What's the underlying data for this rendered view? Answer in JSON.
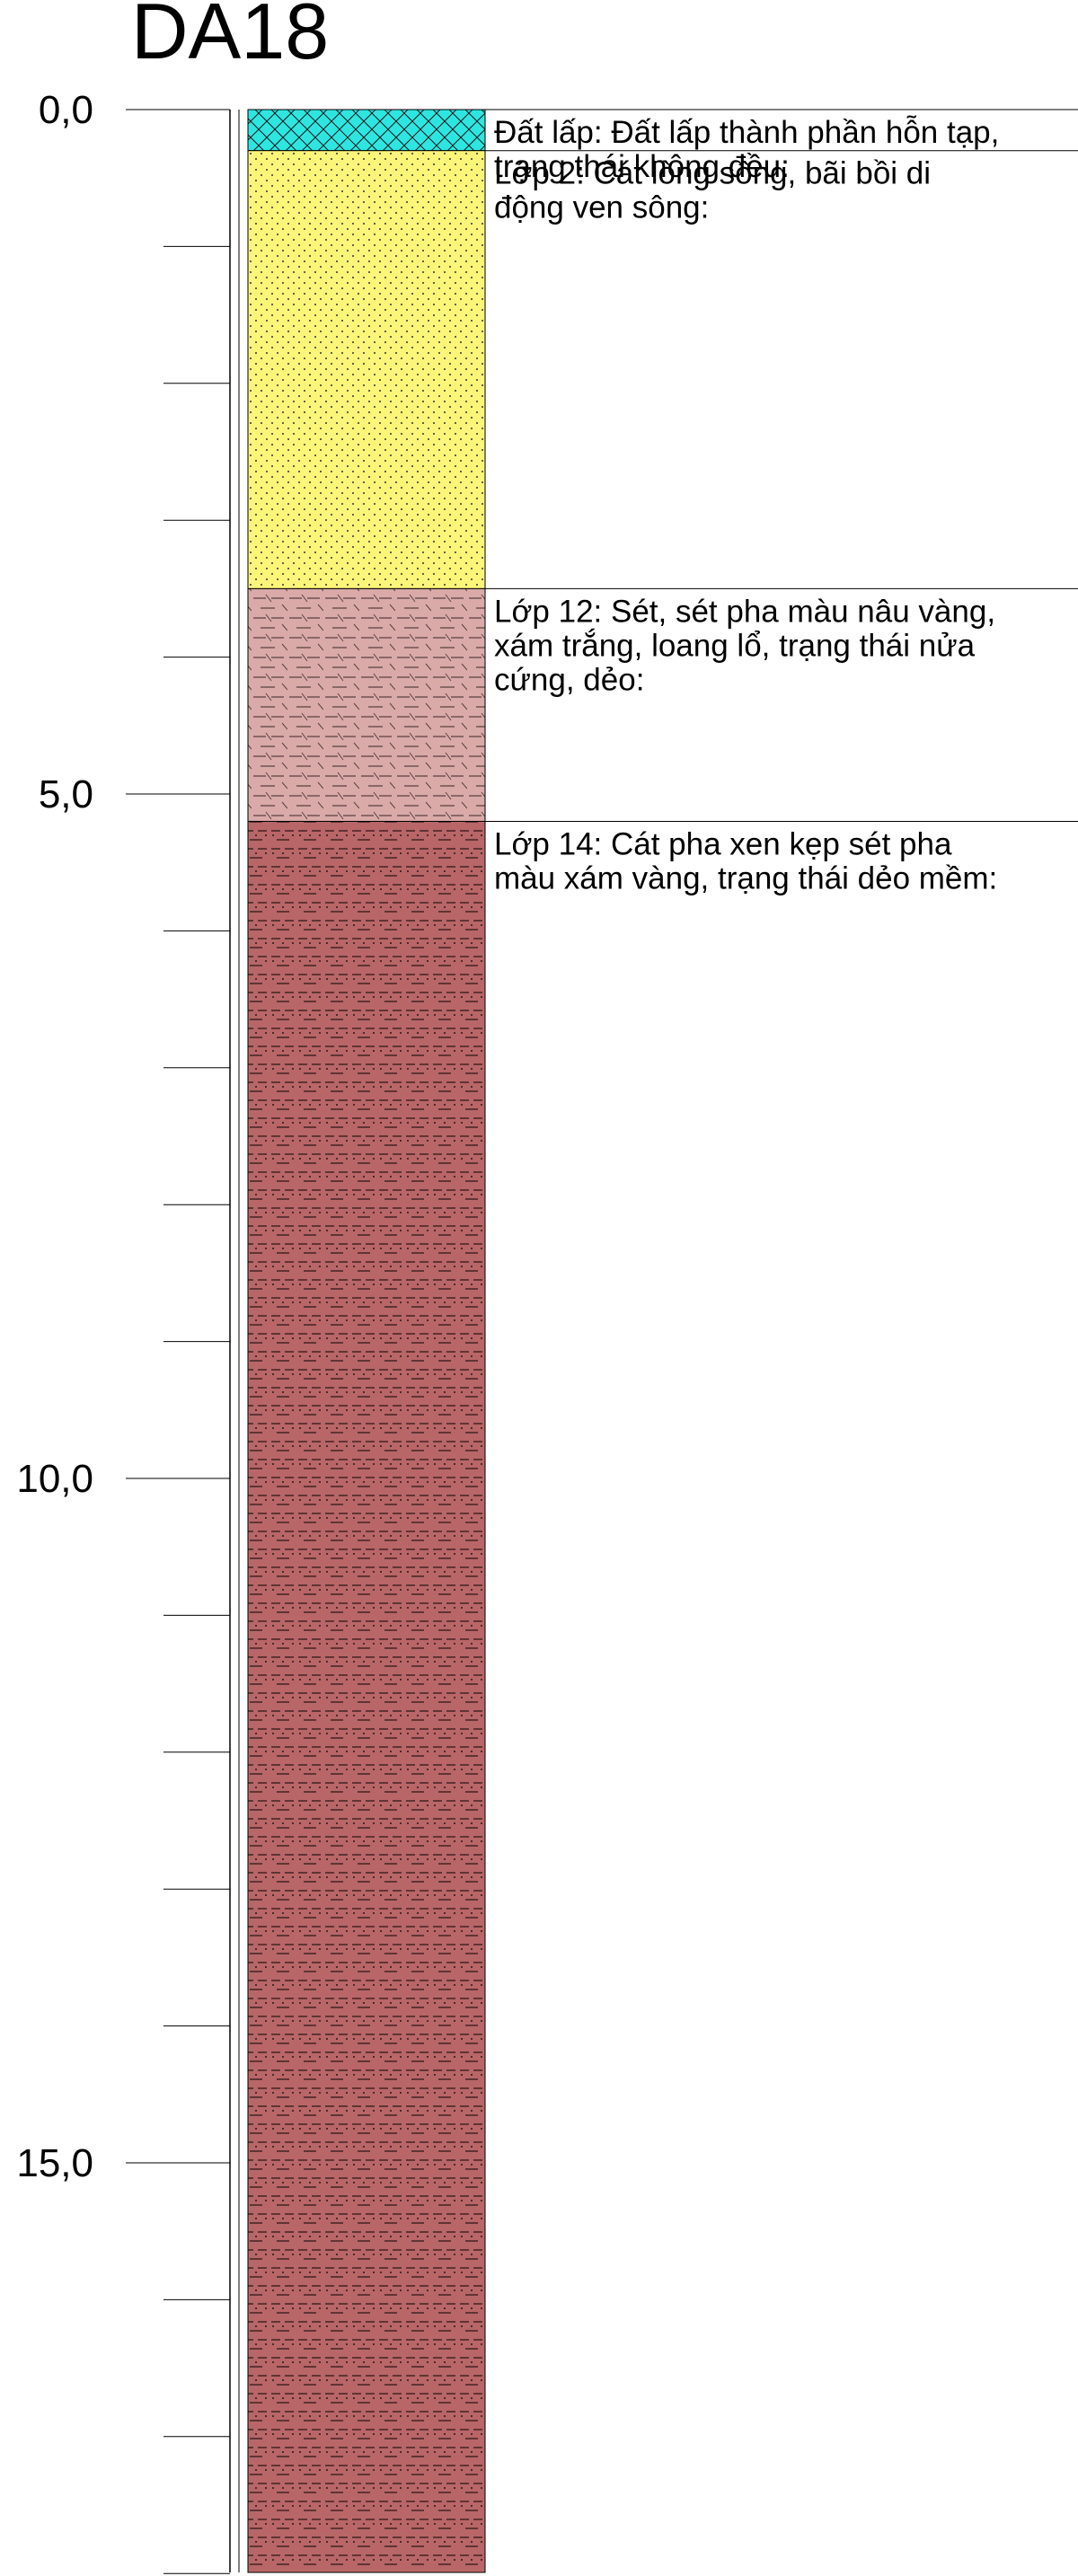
{
  "borehole": {
    "name": "DA18",
    "depth_axis": {
      "labels": [
        "0,0",
        "5,0",
        "10,0",
        "15,0"
      ],
      "label_values": [
        0,
        5,
        10,
        15
      ],
      "minor_tick_step": 1,
      "range": [
        0,
        18
      ]
    },
    "layers": [
      {
        "top": 0.0,
        "bottom": 0.3,
        "pattern": "crosshatch",
        "color": "#2ee6e0",
        "lines": [
          "Đất lấp: Đất lấp thành phần hỗn tạp,",
          "trạng thái không đều:"
        ]
      },
      {
        "top": 0.3,
        "bottom": 3.5,
        "pattern": "dots",
        "color": "#fbf57a",
        "lines": [
          "Lớp 2: Cát lòng sông, bãi bồi di",
          "động ven sông:"
        ]
      },
      {
        "top": 3.5,
        "bottom": 5.2,
        "pattern": "dashes",
        "color": "#d9aaa8",
        "lines": [
          "Lớp 12: Sét, sét pha màu nâu vàng,",
          "xám trắng, loang lổ, trạng thái nửa",
          "cứng, dẻo:"
        ]
      },
      {
        "top": 5.2,
        "bottom": 18.0,
        "pattern": "dash-dot",
        "color": "#b96668",
        "lines": [
          "Lớp 14: Cát pha xen kẹp sét pha",
          "màu xám vàng, trạng thái dẻo mềm:"
        ]
      }
    ]
  }
}
